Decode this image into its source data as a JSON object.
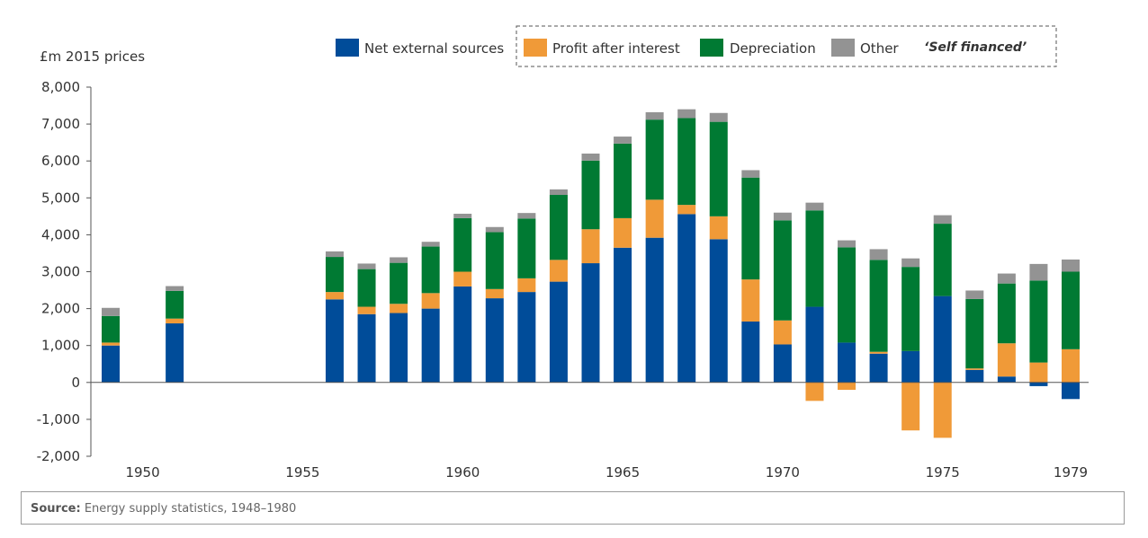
{
  "chart_data": {
    "type": "bar",
    "stacked": true,
    "ylabel": "£m 2015 prices",
    "ylim": [
      -2000,
      8000
    ],
    "yticks": [
      -2000,
      -1000,
      0,
      1000,
      2000,
      3000,
      4000,
      5000,
      6000,
      7000,
      8000
    ],
    "ytick_labels": [
      "-2,000",
      "-1,000",
      "0",
      "1,000",
      "2,000",
      "3,000",
      "4,000",
      "5,000",
      "6,000",
      "7,000",
      "8,000"
    ],
    "xticks": [
      1950,
      1955,
      1960,
      1965,
      1970,
      1975,
      1979
    ],
    "xtick_labels": [
      "1950",
      "1955",
      "1960",
      "1965",
      "1970",
      "1975",
      "1979"
    ],
    "x": [
      1949,
      1951,
      1956,
      1957,
      1958,
      1959,
      1960,
      1961,
      1962,
      1963,
      1964,
      1965,
      1966,
      1967,
      1968,
      1969,
      1970,
      1971,
      1972,
      1973,
      1974,
      1975,
      1976,
      1977,
      1978,
      1979
    ],
    "series": [
      {
        "name": "Net external sources",
        "color": "#004c99",
        "values": [
          1000,
          1600,
          2250,
          1850,
          1880,
          2000,
          2600,
          2280,
          2450,
          2730,
          3230,
          3650,
          3920,
          4560,
          3880,
          1650,
          1030,
          2050,
          1080,
          780,
          850,
          2340,
          340,
          160,
          -100,
          -450
        ]
      },
      {
        "name": "Profit after interest",
        "color": "#f09a38",
        "values": [
          80,
          130,
          200,
          200,
          250,
          420,
          400,
          250,
          370,
          590,
          920,
          800,
          1030,
          250,
          620,
          1140,
          650,
          -500,
          -200,
          50,
          -1300,
          -1500,
          40,
          900,
          540,
          900
        ]
      },
      {
        "name": "Depreciation",
        "color": "#007a33",
        "values": [
          720,
          750,
          950,
          1020,
          1110,
          1260,
          1450,
          1540,
          1620,
          1760,
          1860,
          2020,
          2170,
          2350,
          2560,
          2760,
          2710,
          2610,
          2580,
          2490,
          2280,
          1960,
          1880,
          1620,
          2220,
          2100
        ]
      },
      {
        "name": "Other",
        "color": "#939393",
        "values": [
          220,
          130,
          150,
          150,
          150,
          130,
          120,
          140,
          150,
          150,
          190,
          190,
          200,
          240,
          240,
          200,
          210,
          210,
          190,
          290,
          230,
          230,
          230,
          270,
          450,
          330
        ]
      }
    ],
    "legend_position": "top",
    "annotation": "‘Self financed’"
  },
  "source": {
    "label": "Source:",
    "text": " Energy supply statistics, 1948–1980"
  }
}
